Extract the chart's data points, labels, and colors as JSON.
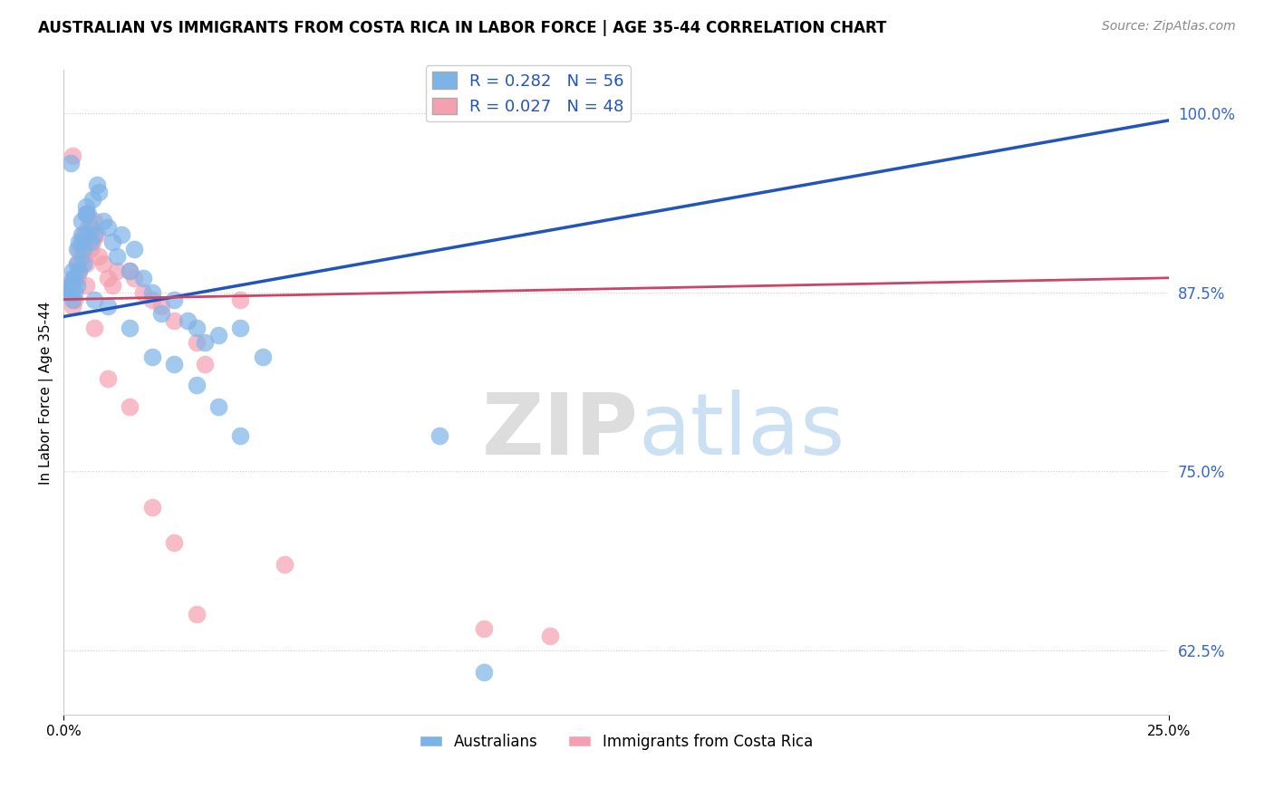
{
  "title": "AUSTRALIAN VS IMMIGRANTS FROM COSTA RICA IN LABOR FORCE | AGE 35-44 CORRELATION CHART",
  "source": "Source: ZipAtlas.com",
  "ylabel": "In Labor Force | Age 35-44",
  "xlim": [
    0.0,
    25.0
  ],
  "ylim": [
    58.0,
    103.0
  ],
  "yticks": [
    62.5,
    75.0,
    87.5,
    100.0
  ],
  "ytick_labels": [
    "62.5%",
    "75.0%",
    "87.5%",
    "100.0%"
  ],
  "blue_R": 0.282,
  "blue_N": 56,
  "pink_R": 0.027,
  "pink_N": 48,
  "blue_color": "#7EB3E8",
  "pink_color": "#F4A0B0",
  "blue_line_color": "#2255BB",
  "pink_line_color": "#CC4466",
  "legend_label_blue": "Australians",
  "legend_label_pink": "Immigrants from Costa Rica",
  "blue_scatter_x": [
    0.1,
    0.1,
    0.15,
    0.15,
    0.2,
    0.2,
    0.2,
    0.25,
    0.25,
    0.3,
    0.3,
    0.3,
    0.35,
    0.35,
    0.4,
    0.4,
    0.45,
    0.45,
    0.5,
    0.5,
    0.55,
    0.6,
    0.6,
    0.65,
    0.7,
    0.75,
    0.8,
    0.9,
    1.0,
    1.1,
    1.2,
    1.3,
    1.5,
    1.6,
    1.8,
    2.0,
    2.2,
    2.5,
    2.8,
    3.0,
    3.2,
    3.5,
    4.0,
    4.5,
    0.15,
    0.5,
    0.7,
    1.0,
    1.5,
    2.0,
    2.5,
    3.0,
    3.5,
    4.0,
    8.5,
    9.5
  ],
  "blue_scatter_y": [
    87.5,
    87.8,
    87.5,
    88.0,
    88.5,
    89.0,
    87.0,
    88.5,
    87.5,
    89.5,
    90.5,
    88.0,
    91.0,
    89.0,
    91.5,
    92.5,
    90.5,
    89.5,
    93.5,
    91.5,
    93.0,
    92.0,
    91.0,
    94.0,
    91.5,
    95.0,
    94.5,
    92.5,
    92.0,
    91.0,
    90.0,
    91.5,
    89.0,
    90.5,
    88.5,
    87.5,
    86.0,
    87.0,
    85.5,
    85.0,
    84.0,
    84.5,
    85.0,
    83.0,
    96.5,
    93.0,
    87.0,
    86.5,
    85.0,
    83.0,
    82.5,
    81.0,
    79.5,
    77.5,
    77.5,
    61.0
  ],
  "pink_scatter_x": [
    0.1,
    0.1,
    0.15,
    0.2,
    0.2,
    0.25,
    0.25,
    0.3,
    0.3,
    0.35,
    0.35,
    0.4,
    0.4,
    0.45,
    0.45,
    0.5,
    0.5,
    0.55,
    0.6,
    0.6,
    0.65,
    0.7,
    0.75,
    0.8,
    0.9,
    1.0,
    1.1,
    1.2,
    1.5,
    1.6,
    1.8,
    2.0,
    2.2,
    2.5,
    3.0,
    3.2,
    4.0,
    5.0,
    0.2,
    0.5,
    0.7,
    1.0,
    1.5,
    2.0,
    2.5,
    3.0,
    9.5,
    11.0
  ],
  "pink_scatter_y": [
    87.5,
    88.0,
    87.5,
    88.0,
    86.5,
    88.5,
    87.0,
    88.5,
    89.5,
    89.0,
    90.5,
    90.0,
    91.0,
    90.0,
    91.5,
    89.5,
    88.0,
    92.0,
    91.5,
    90.5,
    91.0,
    92.5,
    91.5,
    90.0,
    89.5,
    88.5,
    88.0,
    89.0,
    89.0,
    88.5,
    87.5,
    87.0,
    86.5,
    85.5,
    84.0,
    82.5,
    87.0,
    68.5,
    97.0,
    93.0,
    85.0,
    81.5,
    79.5,
    72.5,
    70.0,
    65.0,
    64.0,
    63.5
  ],
  "blue_trend_x": [
    0.0,
    25.0
  ],
  "blue_trend_y": [
    85.8,
    99.5
  ],
  "pink_trend_x": [
    0.0,
    25.0
  ],
  "pink_trend_y": [
    87.0,
    88.5
  ]
}
